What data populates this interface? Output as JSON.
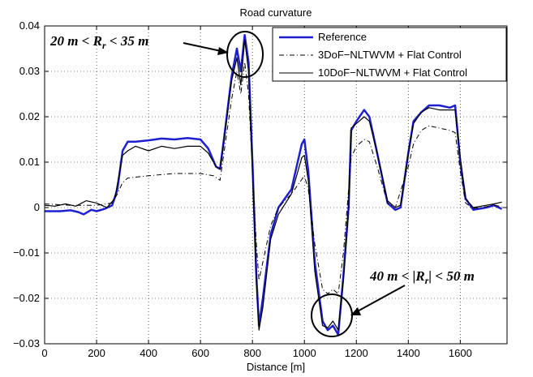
{
  "chart_data": {
    "type": "line",
    "title": "Road curvature",
    "xlabel": "Distance [m]",
    "ylabel": "",
    "xlim": [
      0,
      1780
    ],
    "ylim": [
      -0.03,
      0.04
    ],
    "grid": true,
    "legend_position": "top-right",
    "x_ticks": [
      0,
      200,
      400,
      600,
      800,
      1000,
      1200,
      1400,
      1600
    ],
    "y_ticks": [
      -0.03,
      -0.02,
      -0.01,
      0,
      0.01,
      0.02,
      0.03,
      0.04
    ],
    "x_tick_labels": [
      "0",
      "200",
      "400",
      "600",
      "800",
      "1000",
      "1200",
      "1400",
      "1600"
    ],
    "y_tick_labels": [
      "−0.03",
      "−0.02",
      "−0.01",
      "0",
      "0.01",
      "0.02",
      "0.03",
      "0.04"
    ],
    "series": [
      {
        "name": "Reference",
        "color": "#1f1fd0",
        "style": "solid-thick",
        "points": [
          [
            0,
            -0.0008
          ],
          [
            60,
            -0.0008
          ],
          [
            100,
            -0.0006
          ],
          [
            130,
            -0.001
          ],
          [
            150,
            -0.0015
          ],
          [
            180,
            -0.0005
          ],
          [
            200,
            -0.0008
          ],
          [
            230,
            -0.0003
          ],
          [
            260,
            0.0005
          ],
          [
            280,
            0.004
          ],
          [
            300,
            0.0125
          ],
          [
            320,
            0.0145
          ],
          [
            350,
            0.0145
          ],
          [
            400,
            0.0148
          ],
          [
            450,
            0.0152
          ],
          [
            500,
            0.015
          ],
          [
            550,
            0.0153
          ],
          [
            600,
            0.015
          ],
          [
            630,
            0.013
          ],
          [
            660,
            0.009
          ],
          [
            675,
            0.0085
          ],
          [
            690,
            0.015
          ],
          [
            720,
            0.029
          ],
          [
            740,
            0.035
          ],
          [
            755,
            0.03
          ],
          [
            770,
            0.038
          ],
          [
            785,
            0.032
          ],
          [
            800,
            0.01
          ],
          [
            815,
            -0.015
          ],
          [
            825,
            -0.026
          ],
          [
            840,
            -0.02
          ],
          [
            870,
            -0.006
          ],
          [
            900,
            0.0
          ],
          [
            950,
            0.004
          ],
          [
            990,
            0.014
          ],
          [
            1000,
            0.015
          ],
          [
            1015,
            0.008
          ],
          [
            1040,
            -0.012
          ],
          [
            1070,
            -0.025
          ],
          [
            1090,
            -0.027
          ],
          [
            1110,
            -0.026
          ],
          [
            1130,
            -0.028
          ],
          [
            1150,
            -0.015
          ],
          [
            1170,
            0.0
          ],
          [
            1180,
            0.017
          ],
          [
            1200,
            0.019
          ],
          [
            1230,
            0.0215
          ],
          [
            1250,
            0.02
          ],
          [
            1280,
            0.012
          ],
          [
            1320,
            0.001
          ],
          [
            1350,
            -0.0005
          ],
          [
            1370,
            0.0
          ],
          [
            1400,
            0.012
          ],
          [
            1420,
            0.019
          ],
          [
            1450,
            0.021
          ],
          [
            1480,
            0.0225
          ],
          [
            1520,
            0.0225
          ],
          [
            1560,
            0.022
          ],
          [
            1580,
            0.0225
          ],
          [
            1600,
            0.01
          ],
          [
            1620,
            0.002
          ],
          [
            1650,
            -0.0005
          ],
          [
            1700,
            0.0
          ],
          [
            1730,
            0.0005
          ],
          [
            1760,
            -0.0003
          ]
        ]
      },
      {
        "name": "3DoF−NLTWVM + Flat Control",
        "color": "#000000",
        "style": "dash-dot",
        "points": [
          [
            0,
            0.0008
          ],
          [
            100,
            0.0005
          ],
          [
            200,
            0.0005
          ],
          [
            260,
            0.001
          ],
          [
            280,
            0.003
          ],
          [
            300,
            0.0055
          ],
          [
            320,
            0.0065
          ],
          [
            400,
            0.007
          ],
          [
            500,
            0.0075
          ],
          [
            600,
            0.0075
          ],
          [
            650,
            0.007
          ],
          [
            675,
            0.006
          ],
          [
            690,
            0.012
          ],
          [
            720,
            0.024
          ],
          [
            740,
            0.03
          ],
          [
            755,
            0.025
          ],
          [
            770,
            0.032
          ],
          [
            785,
            0.025
          ],
          [
            800,
            0.008
          ],
          [
            815,
            -0.008
          ],
          [
            825,
            -0.016
          ],
          [
            840,
            -0.012
          ],
          [
            870,
            -0.004
          ],
          [
            900,
            0.0
          ],
          [
            950,
            0.003
          ],
          [
            1000,
            0.007
          ],
          [
            1015,
            0.004
          ],
          [
            1040,
            -0.008
          ],
          [
            1070,
            -0.018
          ],
          [
            1090,
            -0.019
          ],
          [
            1110,
            -0.018
          ],
          [
            1130,
            -0.019
          ],
          [
            1150,
            -0.01
          ],
          [
            1180,
            0.011
          ],
          [
            1200,
            0.0135
          ],
          [
            1230,
            0.015
          ],
          [
            1250,
            0.0145
          ],
          [
            1280,
            0.009
          ],
          [
            1320,
            0.001
          ],
          [
            1350,
            0.0
          ],
          [
            1400,
            0.009
          ],
          [
            1420,
            0.014
          ],
          [
            1450,
            0.017
          ],
          [
            1480,
            0.018
          ],
          [
            1520,
            0.0175
          ],
          [
            1560,
            0.017
          ],
          [
            1580,
            0.0165
          ],
          [
            1600,
            0.008
          ],
          [
            1620,
            0.001
          ],
          [
            1650,
            -0.0002
          ],
          [
            1700,
            0.0002
          ],
          [
            1730,
            0.0005
          ],
          [
            1760,
            0.0002
          ]
        ]
      },
      {
        "name": "10DoF−NLTWVM + Flat Control",
        "color": "#000000",
        "style": "solid",
        "points": [
          [
            0,
            0.0005
          ],
          [
            40,
            0.0003
          ],
          [
            80,
            0.0008
          ],
          [
            120,
            0.0003
          ],
          [
            160,
            0.0015
          ],
          [
            200,
            0.001
          ],
          [
            240,
            0.0
          ],
          [
            270,
            0.002
          ],
          [
            300,
            0.0115
          ],
          [
            320,
            0.0125
          ],
          [
            350,
            0.0135
          ],
          [
            400,
            0.0125
          ],
          [
            450,
            0.0135
          ],
          [
            500,
            0.013
          ],
          [
            550,
            0.0135
          ],
          [
            600,
            0.0135
          ],
          [
            630,
            0.012
          ],
          [
            660,
            0.009
          ],
          [
            675,
            0.0085
          ],
          [
            690,
            0.0145
          ],
          [
            720,
            0.028
          ],
          [
            740,
            0.033
          ],
          [
            755,
            0.027
          ],
          [
            770,
            0.037
          ],
          [
            785,
            0.03
          ],
          [
            800,
            0.008
          ],
          [
            815,
            -0.016
          ],
          [
            825,
            -0.027
          ],
          [
            840,
            -0.022
          ],
          [
            870,
            -0.007
          ],
          [
            900,
            -0.0015
          ],
          [
            950,
            0.003
          ],
          [
            990,
            0.011
          ],
          [
            1000,
            0.0115
          ],
          [
            1015,
            0.006
          ],
          [
            1040,
            -0.014
          ],
          [
            1070,
            -0.026
          ],
          [
            1090,
            -0.0265
          ],
          [
            1110,
            -0.025
          ],
          [
            1130,
            -0.027
          ],
          [
            1150,
            -0.016
          ],
          [
            1170,
            0.0
          ],
          [
            1180,
            0.0175
          ],
          [
            1200,
            0.0185
          ],
          [
            1230,
            0.02
          ],
          [
            1250,
            0.019
          ],
          [
            1280,
            0.012
          ],
          [
            1320,
            0.0015
          ],
          [
            1350,
            0.0
          ],
          [
            1370,
            0.0005
          ],
          [
            1400,
            0.012
          ],
          [
            1420,
            0.0185
          ],
          [
            1450,
            0.021
          ],
          [
            1480,
            0.022
          ],
          [
            1520,
            0.0215
          ],
          [
            1560,
            0.0215
          ],
          [
            1580,
            0.0215
          ],
          [
            1600,
            0.011
          ],
          [
            1620,
            0.002
          ],
          [
            1650,
            0.0
          ],
          [
            1700,
            0.0005
          ],
          [
            1730,
            0.0008
          ],
          [
            1760,
            0.0012
          ]
        ]
      }
    ],
    "annotations": [
      {
        "text_html": "20 m &lt; R<tspan dy='4' font-size='12'>r</tspan><tspan dy='-4'> &lt; 35 m</tspan>",
        "text": "20 m < Rr < 35 m",
        "circle_center": [
          765,
          0.034
        ],
        "ellipse_rx": 22,
        "ellipse_ry": 0.0045
      },
      {
        "text": "40 m < |Rr| < 50 m",
        "circle_center": [
          1100,
          -0.0265
        ],
        "ellipse_rx": 24,
        "ellipse_ry": 0.0045
      }
    ]
  }
}
